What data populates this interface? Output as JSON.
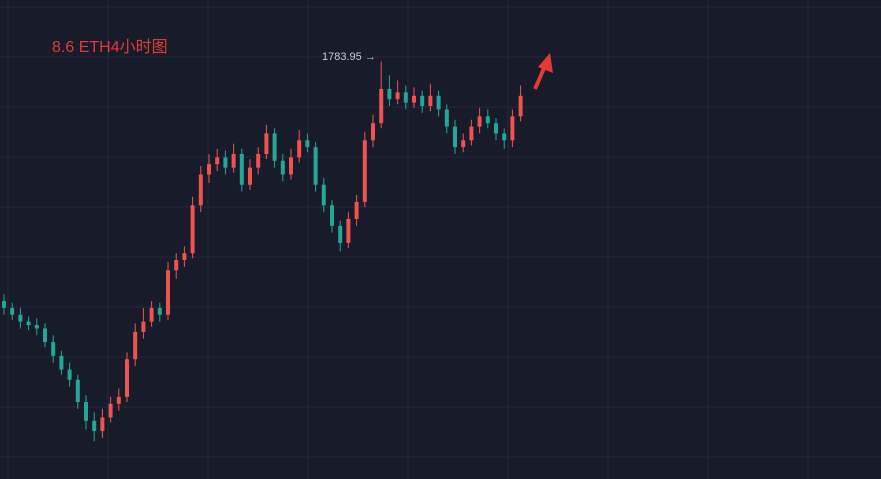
{
  "chart_data": {
    "type": "candlestick",
    "title": "8.6 ETH4小时图",
    "high_label": "1783.95 →",
    "categories": [
      null,
      null,
      null,
      null,
      null,
      null,
      null,
      null,
      null,
      null,
      null,
      null,
      null,
      null,
      null,
      null,
      null,
      null,
      null,
      null,
      null,
      null,
      null,
      null,
      null,
      null,
      null,
      null,
      null,
      null,
      null,
      null,
      null,
      null,
      null,
      null,
      null,
      null,
      null,
      null,
      null,
      null,
      null,
      null,
      null,
      null,
      null,
      null,
      null,
      null,
      null,
      null,
      null,
      null,
      null,
      null,
      null,
      null,
      null,
      null,
      null,
      null,
      null,
      null
    ],
    "open": [
      1644,
      1640,
      1636,
      1632,
      1630,
      1628,
      1620,
      1612,
      1604,
      1598,
      1585,
      1574,
      1568,
      1576,
      1584,
      1588,
      1610,
      1626,
      1632,
      1640,
      1636,
      1662,
      1668,
      1672,
      1700,
      1718,
      1724,
      1728,
      1722,
      1730,
      1712,
      1722,
      1730,
      1742,
      1726,
      1718,
      1728,
      1738,
      1734,
      1712,
      1700,
      1688,
      1678,
      1692,
      1702,
      1738,
      1748,
      1768,
      1762,
      1766,
      1760,
      1764,
      1758,
      1764,
      1756,
      1746,
      1734,
      1738,
      1746,
      1752,
      1748,
      1742,
      1738,
      1752
    ],
    "high": [
      1648,
      1643,
      1640,
      1635,
      1634,
      1631,
      1624,
      1615,
      1608,
      1601,
      1589,
      1579,
      1581,
      1588,
      1593,
      1614,
      1631,
      1640,
      1644,
      1643,
      1667,
      1672,
      1676,
      1705,
      1723,
      1730,
      1733,
      1732,
      1736,
      1733,
      1727,
      1734,
      1747,
      1745,
      1730,
      1733,
      1744,
      1742,
      1737,
      1716,
      1703,
      1691,
      1696,
      1706,
      1743,
      1753,
      1783.95,
      1776,
      1773,
      1770,
      1769,
      1767,
      1771,
      1767,
      1759,
      1750,
      1742,
      1750,
      1757,
      1756,
      1751,
      1745,
      1756,
      1770
    ],
    "low": [
      1636,
      1633,
      1628,
      1627,
      1624,
      1617,
      1608,
      1601,
      1594,
      1581,
      1569,
      1562,
      1564,
      1573,
      1580,
      1585,
      1606,
      1622,
      1629,
      1632,
      1633,
      1657,
      1664,
      1669,
      1696,
      1713,
      1720,
      1718,
      1719,
      1708,
      1709,
      1718,
      1727,
      1722,
      1714,
      1715,
      1725,
      1731,
      1708,
      1696,
      1684,
      1673,
      1675,
      1688,
      1699,
      1734,
      1745,
      1758,
      1759,
      1756,
      1757,
      1754,
      1755,
      1752,
      1742,
      1730,
      1731,
      1735,
      1742,
      1745,
      1738,
      1733,
      1734,
      1749
    ],
    "close": [
      1640,
      1636,
      1632,
      1630,
      1628,
      1620,
      1612,
      1604,
      1598,
      1585,
      1574,
      1568,
      1576,
      1584,
      1588,
      1610,
      1626,
      1632,
      1640,
      1636,
      1662,
      1668,
      1672,
      1700,
      1718,
      1724,
      1728,
      1722,
      1730,
      1712,
      1722,
      1730,
      1742,
      1726,
      1718,
      1728,
      1738,
      1734,
      1712,
      1700,
      1688,
      1678,
      1692,
      1702,
      1738,
      1748,
      1768,
      1762,
      1766,
      1760,
      1764,
      1758,
      1764,
      1756,
      1746,
      1734,
      1738,
      1746,
      1752,
      1748,
      1742,
      1738,
      1752,
      1764
    ],
    "up_color": "#ef5350",
    "down_color": "#26a69a",
    "ylim": [
      1540,
      1820
    ],
    "grid": true
  }
}
